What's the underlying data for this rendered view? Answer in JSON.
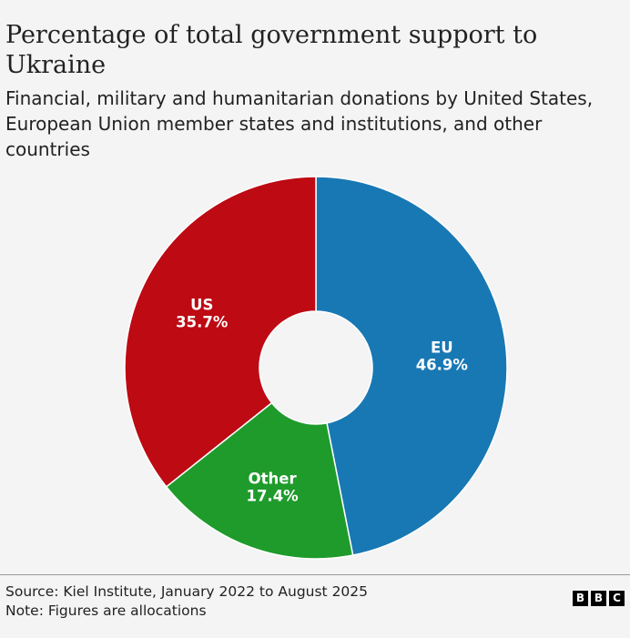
{
  "chart_data": {
    "type": "pie",
    "variant": "donut",
    "title": "Percentage of total government support to Ukraine",
    "subtitle": "Financial, military and humanitarian donations by United States, European Union member states and institutions, and other countries",
    "categories": [
      "EU",
      "Other",
      "US"
    ],
    "values": [
      46.9,
      17.4,
      35.7
    ],
    "value_labels": [
      "46.9%",
      "17.4%",
      "35.7%"
    ],
    "colors": [
      "#1878b4",
      "#1f9b2c",
      "#bd0a13"
    ],
    "unit": "%"
  },
  "footer": {
    "source": "Source: Kiel Institute, January 2022 to August 2025",
    "note": "Note: Figures are allocations",
    "logo_letters": [
      "B",
      "B",
      "C"
    ]
  }
}
